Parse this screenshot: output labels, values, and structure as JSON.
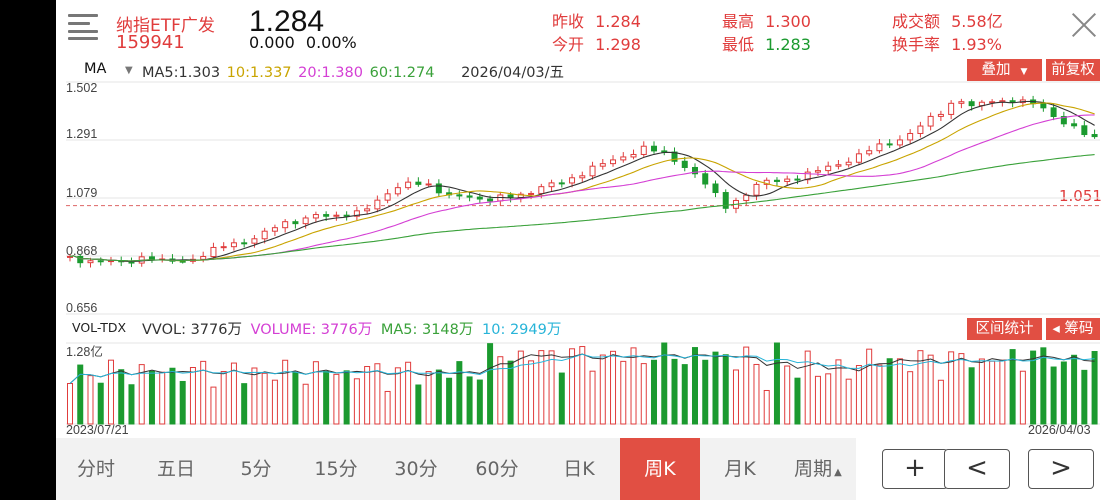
{
  "header": {
    "name": "纳指ETF广发",
    "code": "159941",
    "price": "1.284",
    "change": "0.000",
    "change_pct": "0.00%",
    "stats": [
      {
        "label": "昨收",
        "value": "1.284",
        "color": "#e03c3c"
      },
      {
        "label": "今开",
        "value": "1.298",
        "color": "#e03c3c"
      },
      {
        "label": "最高",
        "value": "1.300",
        "color": "#e03c3c"
      },
      {
        "label": "最低",
        "value": "1.283",
        "color": "#1b9a2f"
      },
      {
        "label": "成交额",
        "value": "5.58亿",
        "color": "#e03c3c"
      },
      {
        "label": "换手率",
        "value": "1.93%",
        "color": "#e03c3c"
      }
    ]
  },
  "ma_bar": {
    "indicator": "MA",
    "ma5": "MA5:1.303",
    "ma10": "10:1.337",
    "ma20": "20:1.380",
    "ma60": "60:1.274",
    "date": "2026/04/03/五",
    "overlay_btn": "叠加",
    "adjust_btn": "前复权"
  },
  "price_axis": {
    "ticks": [
      "1.502",
      "1.291",
      "1.079",
      "0.868",
      "0.656"
    ],
    "ref_line_label": "1.051"
  },
  "vol_bar": {
    "indicator": "VOL-TDX",
    "vvol": "VVOL: 3776万",
    "volume": "VOLUME: 3776万",
    "ma5": "MA5: 3148万",
    "ma10": "10: 2949万",
    "interval_btn": "区间统计",
    "chips_btn": "◂ 筹码",
    "max_label": "1.28亿",
    "start_date": "2023/07/21",
    "end_date": "2026/04/03"
  },
  "tabs": [
    "分时",
    "五日",
    "5分",
    "15分",
    "30分",
    "60分",
    "日K",
    "周K",
    "月K",
    "周期"
  ],
  "active_tab": "周K",
  "colors": {
    "up": "#e03c3c",
    "down": "#1b9a2f",
    "ma5": "#333333",
    "ma10": "#c9a400",
    "ma20": "#d43fd4",
    "ma60": "#3aa13a",
    "vol_ma10": "#28b4d8"
  },
  "chart_data": {
    "type": "candlestick",
    "y_range": [
      0.656,
      1.502
    ],
    "ref_line": 1.051,
    "x_start": "2023/07/21",
    "x_end": "2026/04/03",
    "latest": {
      "ma5": 1.303,
      "ma10": 1.337,
      "ma20": 1.38,
      "ma60": 1.274,
      "volume": "3776万"
    },
    "volume_max": "1.28亿"
  }
}
